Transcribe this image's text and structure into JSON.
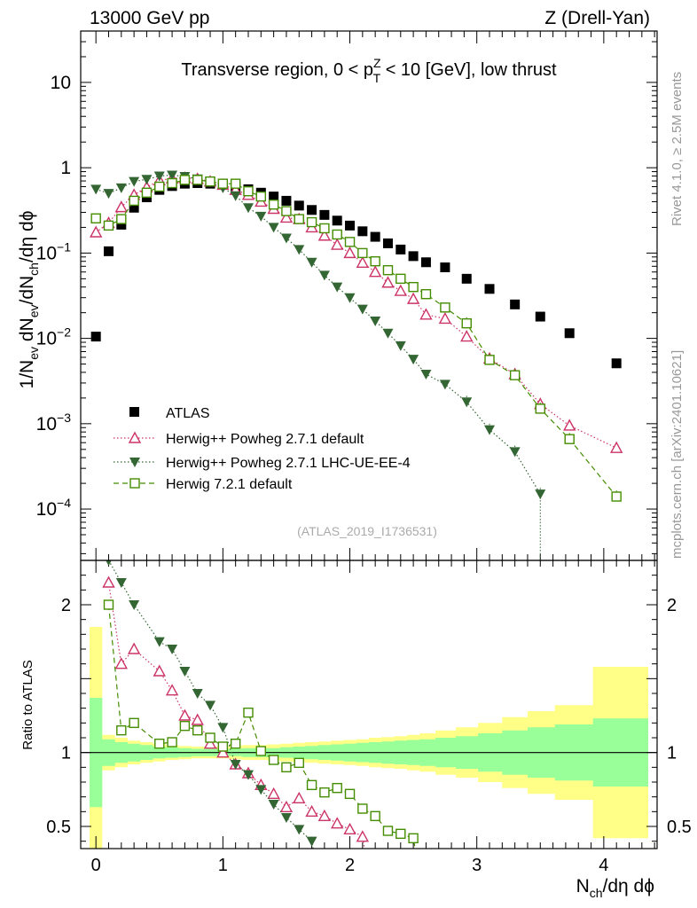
{
  "header": {
    "left": "13000 GeV pp",
    "right": "Z (Drell-Yan)"
  },
  "side_labels": {
    "rivet": "Rivet 4.1.0, ≥ 2.5M events",
    "mcplots": "mcplots.cern.ch [arXiv:2401.10621]"
  },
  "colors": {
    "atlas": "#000000",
    "powheg_default": "#cc3366",
    "powheg_lhc": "#336633",
    "herwig721": "#448c00",
    "band_inner": "#99ff99",
    "band_outer": "#ffff88"
  },
  "chart_data": [
    {
      "type": "scatter",
      "panel": "main",
      "title": "Transverse region, 0 < p_T^Z < 10 [GeV], low thrust",
      "title_parts": {
        "prefix": "Transverse region, 0 < p",
        "sup": "Z",
        "sub": "T",
        "suffix": " < 10 [GeV], low thrust"
      },
      "ylabel_parts": {
        "a": "1/N",
        "a_sub": "ev",
        "b": " dN",
        "b_sub": "ev",
        "c": "/dN",
        "c_sub": "ch",
        "d": "/dη dϕ"
      },
      "yscale": "log",
      "ylim": [
        2.5e-05,
        40
      ],
      "xlim": [
        -0.12,
        4.42
      ],
      "y_ticks": [
        {
          "v": 0.0001,
          "base": "10",
          "exp": "−4"
        },
        {
          "v": 0.001,
          "base": "10",
          "exp": "−3"
        },
        {
          "v": 0.01,
          "base": "10",
          "exp": "−2"
        },
        {
          "v": 0.1,
          "base": "10",
          "exp": "−1"
        },
        {
          "v": 1,
          "base": "1",
          "exp": ""
        },
        {
          "v": 10,
          "base": "10",
          "exp": ""
        }
      ],
      "watermark": "(ATLAS_2019_I1736531)",
      "legend_position": "lower-left",
      "x": [
        0.0,
        0.1,
        0.2,
        0.3,
        0.4,
        0.5,
        0.6,
        0.7,
        0.8,
        0.9,
        1.0,
        1.1,
        1.2,
        1.3,
        1.4,
        1.5,
        1.6,
        1.7,
        1.8,
        1.9,
        2.0,
        2.1,
        2.2,
        2.3,
        2.4,
        2.5,
        2.6,
        2.75,
        2.92,
        3.1,
        3.3,
        3.5,
        3.73,
        4.1
      ],
      "series": [
        {
          "name": "ATLAS",
          "marker": "square",
          "values": [
            0.0105,
            0.105,
            0.215,
            0.34,
            0.45,
            0.55,
            0.61,
            0.65,
            0.66,
            0.65,
            0.63,
            0.6,
            0.56,
            0.51,
            0.46,
            0.41,
            0.36,
            0.32,
            0.28,
            0.24,
            0.21,
            0.18,
            0.155,
            0.13,
            0.11,
            0.092,
            0.078,
            0.068,
            0.05,
            0.038,
            0.025,
            0.018,
            0.0115,
            0.0051
          ]
        },
        {
          "name": "Herwig++ Powheg 2.7.1 default",
          "marker": "triangle-up",
          "line": "dotted",
          "values": [
            0.175,
            0.225,
            0.345,
            0.48,
            0.59,
            0.71,
            0.75,
            0.76,
            0.74,
            0.69,
            0.63,
            0.55,
            0.48,
            0.4,
            0.33,
            0.26,
            0.25,
            0.2,
            0.16,
            0.125,
            0.1,
            0.077,
            0.06,
            0.045,
            0.036,
            0.029,
            0.019,
            0.017,
            0.0105,
            0.0058,
            0.0038,
            0.0017,
            0.00095,
            0.00052
          ]
        },
        {
          "name": "Herwig++ Powheg 2.7.1 LHC-UE-EE-4",
          "marker": "triangle-down",
          "line": "dotted",
          "values": [
            0.56,
            0.5,
            0.58,
            0.69,
            0.73,
            0.8,
            0.82,
            0.79,
            0.74,
            0.68,
            0.58,
            0.47,
            0.34,
            0.27,
            0.2,
            0.15,
            0.11,
            0.078,
            0.055,
            0.04,
            0.03,
            0.022,
            0.016,
            0.0115,
            0.0082,
            0.0057,
            0.0038,
            0.0029,
            0.0018,
            0.00085,
            0.00047,
            0.00015,
            null,
            null
          ]
        },
        {
          "name": "Herwig 7.2.1 default",
          "marker": "open-square",
          "line": "dashed",
          "values": [
            0.255,
            0.21,
            0.25,
            0.41,
            0.51,
            0.6,
            0.66,
            0.72,
            0.72,
            0.69,
            0.65,
            0.65,
            0.53,
            0.46,
            0.37,
            0.31,
            0.25,
            0.23,
            0.195,
            0.165,
            0.135,
            0.1,
            0.08,
            0.063,
            0.05,
            0.04,
            0.033,
            0.023,
            0.015,
            0.0056,
            0.0037,
            0.0015,
            0.00066,
            0.00014
          ]
        }
      ]
    },
    {
      "type": "scatter",
      "panel": "ratio",
      "ylabel": "Ratio to ATLAS",
      "xlabel_parts": {
        "a": "N",
        "a_sub": "ch",
        "b": "/dη dϕ"
      },
      "ylim": [
        0.35,
        2.3
      ],
      "xlim": [
        -0.12,
        4.42
      ],
      "x_ticks": [
        0,
        1,
        2,
        3,
        4
      ],
      "y_ticks": [
        0.5,
        1,
        2
      ],
      "reference_line": 1,
      "x": [
        0.1,
        0.2,
        0.3,
        0.5,
        0.6,
        0.7,
        0.8,
        0.9,
        1.0,
        1.1,
        1.2,
        1.3,
        1.4,
        1.5,
        1.6,
        1.7,
        1.8,
        1.9,
        2.0,
        2.1,
        2.2,
        2.3,
        2.4,
        2.5
      ],
      "series": [
        {
          "name": "Herwig++ Powheg 2.7.1 default",
          "values": [
            2.15,
            1.6,
            1.7,
            1.55,
            1.42,
            1.25,
            1.22,
            1.06,
            1.0,
            0.92,
            0.86,
            0.78,
            0.72,
            0.63,
            0.69,
            0.6,
            0.57,
            0.52,
            0.48,
            0.43,
            null,
            null,
            null,
            null
          ]
        },
        {
          "name": "Herwig++ Powheg 2.7.1 LHC-UE-EE-4",
          "values": [
            2.3,
            2.15,
            2.0,
            1.75,
            1.7,
            1.55,
            1.4,
            1.32,
            1.17,
            0.92,
            0.85,
            0.75,
            0.65,
            0.56,
            0.48,
            0.4,
            null,
            null,
            null,
            null,
            null,
            null,
            null,
            null
          ]
        },
        {
          "name": "Herwig 7.2.1 default",
          "values": [
            2.0,
            1.15,
            1.2,
            1.06,
            1.07,
            1.18,
            1.15,
            1.1,
            1.04,
            1.06,
            1.27,
            1.01,
            0.95,
            0.9,
            0.93,
            0.78,
            0.73,
            0.76,
            0.72,
            0.62,
            0.57,
            0.47,
            0.45,
            0.42
          ]
        }
      ],
      "band_x": [
        0.0,
        0.1,
        0.2,
        0.3,
        0.4,
        0.5,
        0.6,
        0.7,
        0.8,
        0.9,
        1.0,
        1.1,
        1.2,
        1.3,
        1.4,
        1.5,
        1.6,
        1.7,
        1.8,
        1.9,
        2.0,
        2.1,
        2.2,
        2.3,
        2.4,
        2.5,
        2.6,
        2.75,
        2.92,
        3.1,
        3.3,
        3.5,
        3.73,
        4.1
      ],
      "band_inner": [
        0.37,
        0.09,
        0.07,
        0.06,
        0.05,
        0.04,
        0.035,
        0.03,
        0.025,
        0.025,
        0.025,
        0.025,
        0.03,
        0.03,
        0.03,
        0.035,
        0.04,
        0.045,
        0.05,
        0.055,
        0.06,
        0.065,
        0.07,
        0.075,
        0.08,
        0.085,
        0.09,
        0.1,
        0.11,
        0.13,
        0.15,
        0.17,
        0.19,
        0.23
      ],
      "band_outer": [
        0.85,
        0.12,
        0.1,
        0.08,
        0.07,
        0.06,
        0.05,
        0.045,
        0.04,
        0.04,
        0.04,
        0.045,
        0.05,
        0.05,
        0.055,
        0.06,
        0.065,
        0.07,
        0.075,
        0.08,
        0.085,
        0.09,
        0.1,
        0.105,
        0.11,
        0.12,
        0.13,
        0.15,
        0.17,
        0.2,
        0.24,
        0.28,
        0.32,
        0.58
      ]
    }
  ]
}
